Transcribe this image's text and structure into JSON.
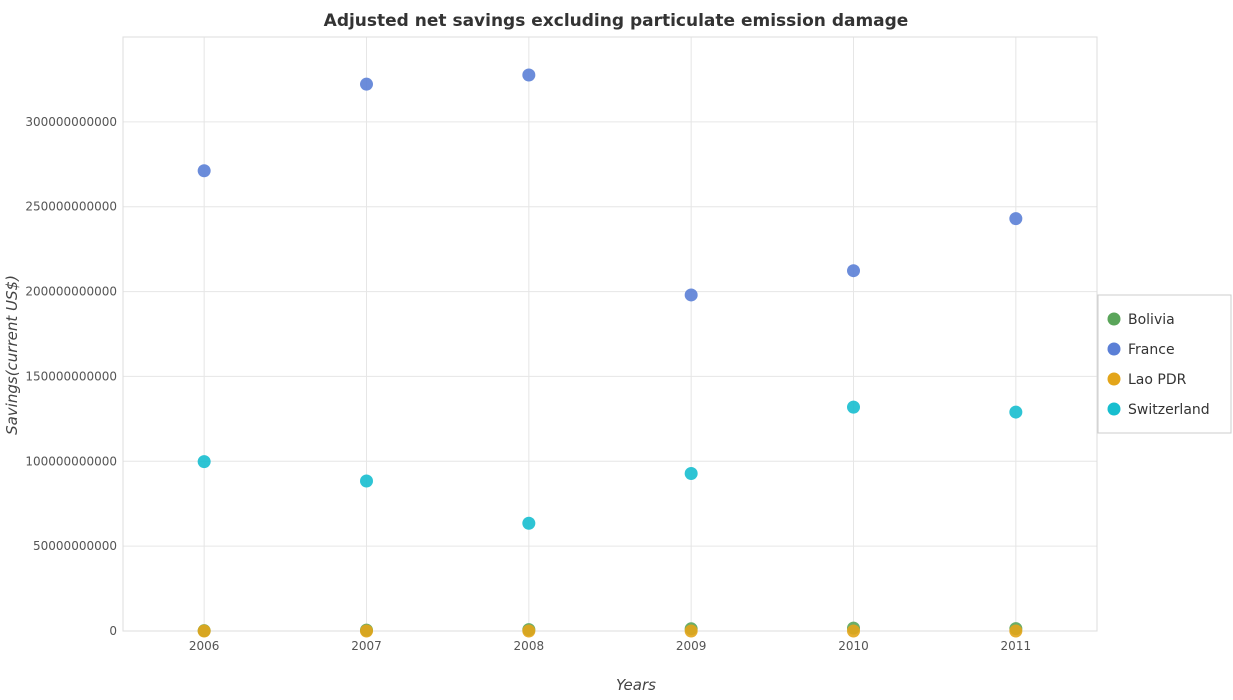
{
  "chart_data": {
    "type": "scatter",
    "title": "Adjusted net savings excluding particulate emission damage",
    "xlabel": "Years",
    "ylabel": "Savings(current US$)",
    "categories": [
      "2006",
      "2007",
      "2008",
      "2009",
      "2010",
      "2011"
    ],
    "ylim": [
      0,
      350000000000
    ],
    "yticks": [
      0,
      50000000000,
      100000000000,
      150000000000,
      200000000000,
      250000000000,
      300000000000
    ],
    "ytick_labels": [
      "0",
      "50000000000",
      "100000000000",
      "150000000000",
      "200000000000",
      "250000000000",
      "300000000000"
    ],
    "grid": true,
    "legend_position": "right",
    "series": [
      {
        "name": "Bolivia",
        "color": "#5aa55a",
        "values": [
          200000000,
          500000000,
          800000000,
          1300000000,
          1700000000,
          1400000000
        ]
      },
      {
        "name": "France",
        "color": "#5b7fd6",
        "values": [
          271200000000,
          322200000000,
          327600000000,
          198000000000,
          212300000000,
          243000000000
        ]
      },
      {
        "name": "Lao PDR",
        "color": "#e3a51a",
        "values": [
          0,
          0,
          0,
          0,
          0,
          0
        ]
      },
      {
        "name": "Switzerland",
        "color": "#17becf",
        "values": [
          99800000000,
          88400000000,
          63500000000,
          92800000000,
          131900000000,
          129000000000
        ]
      }
    ]
  }
}
